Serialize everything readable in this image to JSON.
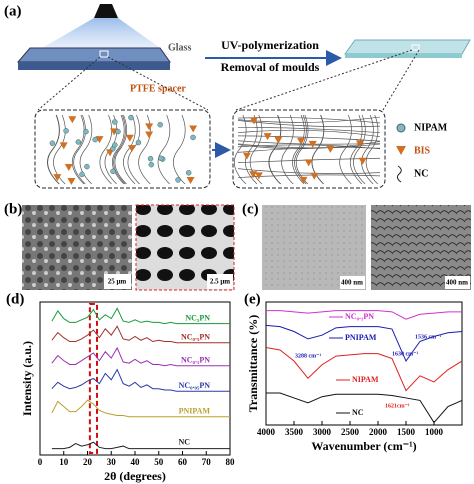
{
  "panel_a": {
    "label": "(a)",
    "glass": "Glass",
    "step1": "UV-polymerization",
    "step2": "Removal of moulds",
    "spacer": "PTFE spacer",
    "legend": [
      "NIPAM",
      "BIS",
      "NC"
    ]
  },
  "panel_b": {
    "label": "(b)",
    "scales": [
      "25 μm",
      "2.5 μm"
    ]
  },
  "panel_c": {
    "label": "(c)",
    "scales": [
      "400 nm",
      "400 nm"
    ]
  },
  "chart_data": [
    {
      "type": "line",
      "label": "(d)",
      "xlabel": "2θ (degrees)",
      "ylabel": "Intensity (a.u.)",
      "xlim": [
        0,
        80
      ],
      "ylim": [
        0,
        12
      ],
      "xticks": [
        0,
        10,
        20,
        30,
        40,
        50,
        60,
        70,
        80
      ],
      "highlight_x": [
        21,
        24
      ],
      "x": [
        5,
        7.5,
        10,
        12.5,
        15,
        17.5,
        20,
        22.5,
        25,
        27.5,
        30,
        32.5,
        35,
        37.5,
        40,
        42.5,
        45,
        47.5,
        50,
        52.5,
        55,
        57.5,
        60,
        62.5,
        65,
        67.5,
        70,
        72.5,
        75,
        77.5,
        80
      ],
      "series": [
        {
          "name": "NC₅PN",
          "color": "#1a9a3a",
          "values": [
            10.5,
            11.3,
            10.7,
            10.4,
            10.4,
            10.6,
            10.8,
            11.4,
            10.6,
            11.0,
            10.7,
            11.5,
            10.5,
            10.4,
            10.6,
            10.4,
            10.5,
            10.4,
            10.4,
            10.3,
            10.4,
            10.3,
            10.3,
            10.3,
            10.3,
            10.3,
            10.3,
            10.3,
            10.3,
            10.3,
            10.3
          ]
        },
        {
          "name": "NC₀.₅PN",
          "color": "#a0302a",
          "values": [
            9.0,
            9.6,
            9.2,
            8.9,
            8.9,
            9.1,
            9.4,
            9.8,
            9.2,
            9.9,
            9.4,
            10.1,
            9.1,
            9.0,
            9.3,
            9.0,
            9.2,
            8.9,
            9.0,
            8.9,
            8.9,
            8.8,
            8.8,
            8.8,
            8.8,
            8.8,
            8.8,
            8.8,
            8.8,
            8.8,
            8.8
          ]
        },
        {
          "name": "NC₀.₁PN",
          "color": "#9a30b0",
          "values": [
            7.2,
            7.8,
            7.4,
            7.1,
            7.1,
            7.4,
            7.7,
            8.0,
            7.4,
            8.1,
            7.6,
            8.4,
            7.3,
            7.2,
            7.5,
            7.2,
            7.4,
            7.1,
            7.1,
            7.0,
            7.1,
            7.0,
            7.0,
            7.0,
            7.0,
            7.0,
            7.0,
            7.0,
            7.0,
            7.0,
            7.0
          ]
        },
        {
          "name": "NC₀.₀₅PN",
          "color": "#2a3aa8",
          "values": [
            5.2,
            5.7,
            5.4,
            5.2,
            5.3,
            5.5,
            5.8,
            6.0,
            5.6,
            6.4,
            5.9,
            6.7,
            5.6,
            5.4,
            5.7,
            5.3,
            5.5,
            5.2,
            5.2,
            5.1,
            5.1,
            5.0,
            5.0,
            5.0,
            5.0,
            5.0,
            5.0,
            5.0,
            5.0,
            5.0,
            5.0
          ]
        },
        {
          "name": "PNIPAM",
          "color": "#b8a030",
          "values": [
            3.3,
            4.2,
            3.8,
            3.4,
            3.4,
            3.8,
            4.3,
            4.0,
            3.5,
            3.3,
            3.2,
            3.1,
            3.1,
            3.0,
            3.0,
            3.0,
            3.0,
            3.0,
            3.0,
            3.0,
            3.0,
            3.0,
            3.0,
            3.0,
            3.0,
            3.0,
            3.0,
            3.0,
            3.0,
            3.0,
            3.0
          ]
        },
        {
          "name": "NC",
          "color": "#222222",
          "values": [
            0.5,
            0.5,
            0.5,
            0.6,
            0.9,
            0.7,
            0.8,
            1.0,
            0.6,
            0.5,
            0.5,
            0.6,
            0.7,
            0.5,
            0.5,
            0.5,
            0.5,
            0.5,
            0.5,
            0.5,
            0.5,
            0.5,
            0.5,
            0.5,
            0.5,
            0.5,
            0.5,
            0.5,
            0.5,
            0.5,
            0.5
          ]
        }
      ]
    },
    {
      "type": "line",
      "label": "(e)",
      "xlabel": "Wavenumber (cm⁻¹)",
      "ylabel": "Transmittance (%)",
      "xlim": [
        4000,
        500
      ],
      "ylim": [
        0,
        10
      ],
      "xticks": [
        4000,
        3500,
        3000,
        2500,
        2000,
        1500,
        1000
      ],
      "x": [
        4000,
        3750,
        3500,
        3250,
        3000,
        2750,
        2500,
        2250,
        2000,
        1750,
        1500,
        1250,
        1000,
        750,
        500
      ],
      "annotations": [
        "3288 cm⁻¹",
        "1536 cm⁻¹",
        "1630 cm⁻¹",
        "1621cm⁻¹"
      ],
      "series": [
        {
          "name": "NC₀.₁PN",
          "color": "#d030d0",
          "values": [
            9.3,
            9.3,
            9.2,
            9.1,
            9.2,
            9.3,
            9.3,
            9.3,
            9.3,
            9.2,
            8.6,
            9.0,
            9.1,
            9.2,
            9.2
          ]
        },
        {
          "name": "PNIPAM",
          "color": "#1a1ab0",
          "values": [
            8.1,
            8.0,
            7.6,
            7.0,
            7.3,
            7.9,
            8.0,
            8.0,
            8.0,
            7.8,
            5.2,
            6.8,
            7.2,
            7.5,
            7.6
          ]
        },
        {
          "name": "NIPAM",
          "color": "#e02020",
          "values": [
            6.3,
            6.1,
            5.2,
            3.8,
            4.9,
            5.6,
            5.7,
            5.8,
            5.8,
            5.4,
            2.8,
            4.0,
            3.5,
            4.5,
            5.2
          ]
        },
        {
          "name": "NC",
          "color": "#111111",
          "values": [
            2.6,
            2.6,
            2.2,
            1.8,
            2.3,
            2.5,
            2.5,
            2.5,
            2.5,
            2.4,
            2.2,
            2.0,
            0.2,
            1.5,
            2.0
          ]
        }
      ]
    }
  ]
}
